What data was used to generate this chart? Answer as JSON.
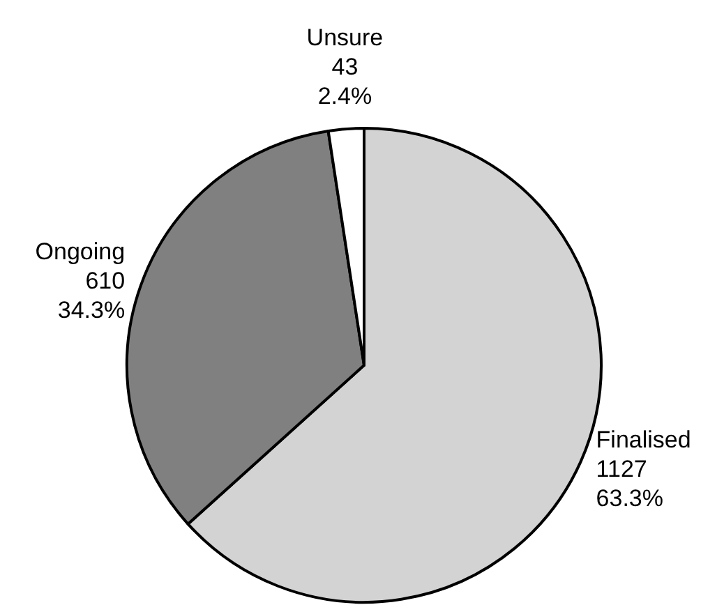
{
  "chart_data": {
    "type": "pie",
    "categories": [
      "Finalised",
      "Ongoing",
      "Unsure"
    ],
    "values": [
      1127,
      610,
      43
    ],
    "colors": [
      "#d3d3d3",
      "#808080",
      "#ffffff"
    ],
    "value_labels": [
      "1127\n63.3%",
      "610\n34.3%",
      "43\n2.4%"
    ]
  }
}
